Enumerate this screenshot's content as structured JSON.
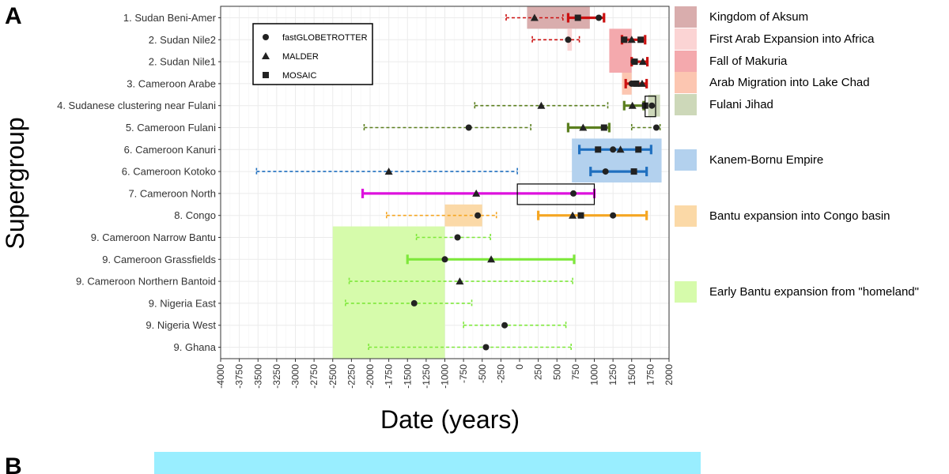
{
  "panel_labels": {
    "a": "A",
    "b": "B"
  },
  "chart_data": {
    "type": "interval-dot",
    "xlabel": "Date (years)",
    "ylabel": "Supergroup",
    "xlim": [
      -4000,
      2000
    ],
    "xticks": [
      -4000,
      -3750,
      -3500,
      -3250,
      -3000,
      -2750,
      -2500,
      -2250,
      -2000,
      -1750,
      -1500,
      -1250,
      -1000,
      -750,
      -500,
      -250,
      0,
      250,
      500,
      750,
      1000,
      1250,
      1500,
      1750,
      2000
    ],
    "grid": true,
    "categories": [
      "1. Sudan Beni-Amer",
      "2. Sudan Nile2",
      "2. Sudan Nile1",
      "3. Cameroon Arabe",
      "4. Sudanese clustering near Fulani",
      "5. Cameroon Fulani",
      "6. Cameroon Kanuri",
      "6. Cameroon Kotoko",
      "7. Cameroon North",
      "8. Congo",
      "9. Cameroon Narrow Bantu",
      "9. Cameroon Grassfields",
      "9. Cameroon Northern Bantoid",
      "9. Nigeria East",
      "9. Nigeria West",
      "9. Ghana"
    ],
    "method_legend": [
      {
        "method": "fastGLOBETROTTER",
        "shape": "circle"
      },
      {
        "method": "MALDER",
        "shape": "triangle"
      },
      {
        "method": "MOSAIC",
        "shape": "square"
      }
    ],
    "intervals": [
      {
        "group": 0,
        "from": -180,
        "to": 580,
        "style": "dashed",
        "color": "#cc1111"
      },
      {
        "group": 0,
        "from": 650,
        "to": 1130,
        "style": "solid",
        "color": "#cc1111"
      },
      {
        "group": 1,
        "from": 170,
        "to": 800,
        "style": "dashed",
        "color": "#cc1111"
      },
      {
        "group": 1,
        "from": 1370,
        "to": 1680,
        "style": "solid",
        "color": "#cc1111"
      },
      {
        "group": 2,
        "from": 1500,
        "to": 1710,
        "style": "solid",
        "color": "#cc1111"
      },
      {
        "group": 3,
        "from": 1420,
        "to": 1700,
        "style": "solid",
        "color": "#cc1111"
      },
      {
        "group": 4,
        "from": -600,
        "to": 1180,
        "style": "dashed",
        "color": "#5b7f1f"
      },
      {
        "group": 4,
        "from": 1400,
        "to": 1660,
        "style": "solid",
        "color": "#5b7f1f"
      },
      {
        "group": 5,
        "from": -2080,
        "to": 150,
        "style": "dashed",
        "color": "#5b7f1f"
      },
      {
        "group": 5,
        "from": 650,
        "to": 1200,
        "style": "solid",
        "color": "#5b7f1f"
      },
      {
        "group": 5,
        "from": 1500,
        "to": 1880,
        "style": "dashed",
        "color": "#5b7f1f"
      },
      {
        "group": 6,
        "from": 800,
        "to": 1760,
        "style": "solid",
        "color": "#1f6fbf"
      },
      {
        "group": 7,
        "from": -3520,
        "to": -30,
        "style": "dashed",
        "color": "#1f6fbf"
      },
      {
        "group": 7,
        "from": 950,
        "to": 1700,
        "style": "solid",
        "color": "#1f6fbf"
      },
      {
        "group": 8,
        "from": -2100,
        "to": 1000,
        "style": "solid",
        "color": "#dd11dd"
      },
      {
        "group": 9,
        "from": -1780,
        "to": -310,
        "style": "dashed",
        "color": "#f5a623"
      },
      {
        "group": 9,
        "from": 250,
        "to": 1700,
        "style": "solid",
        "color": "#f5a623"
      },
      {
        "group": 10,
        "from": -1380,
        "to": -390,
        "style": "dashed",
        "color": "#7ee83b"
      },
      {
        "group": 11,
        "from": -1500,
        "to": 730,
        "style": "solid",
        "color": "#7ee83b"
      },
      {
        "group": 12,
        "from": -2280,
        "to": 710,
        "style": "dashed",
        "color": "#7ee83b"
      },
      {
        "group": 13,
        "from": -2330,
        "to": -640,
        "style": "dashed",
        "color": "#7ee83b"
      },
      {
        "group": 14,
        "from": -750,
        "to": 620,
        "style": "dashed",
        "color": "#7ee83b"
      },
      {
        "group": 15,
        "from": -2020,
        "to": 690,
        "style": "dashed",
        "color": "#7ee83b"
      }
    ],
    "points": [
      {
        "group": 0,
        "x": 200,
        "shape": "triangle"
      },
      {
        "group": 0,
        "x": 780,
        "shape": "square"
      },
      {
        "group": 0,
        "x": 1060,
        "shape": "circle"
      },
      {
        "group": 1,
        "x": 650,
        "shape": "circle"
      },
      {
        "group": 1,
        "x": 1400,
        "shape": "square"
      },
      {
        "group": 1,
        "x": 1500,
        "shape": "triangle"
      },
      {
        "group": 1,
        "x": 1620,
        "shape": "square"
      },
      {
        "group": 2,
        "x": 1530,
        "shape": "circle"
      },
      {
        "group": 2,
        "x": 1540,
        "shape": "square"
      },
      {
        "group": 2,
        "x": 1650,
        "shape": "triangle"
      },
      {
        "group": 3,
        "x": 1500,
        "shape": "circle"
      },
      {
        "group": 3,
        "x": 1560,
        "shape": "square"
      },
      {
        "group": 3,
        "x": 1640,
        "shape": "triangle"
      },
      {
        "group": 4,
        "x": 290,
        "shape": "triangle"
      },
      {
        "group": 4,
        "x": 1510,
        "shape": "triangle"
      },
      {
        "group": 4,
        "x": 1680,
        "shape": "square"
      },
      {
        "group": 4,
        "x": 1770,
        "shape": "circle"
      },
      {
        "group": 5,
        "x": -680,
        "shape": "circle"
      },
      {
        "group": 5,
        "x": 850,
        "shape": "triangle"
      },
      {
        "group": 5,
        "x": 1130,
        "shape": "square"
      },
      {
        "group": 5,
        "x": 1830,
        "shape": "circle"
      },
      {
        "group": 6,
        "x": 1050,
        "shape": "square"
      },
      {
        "group": 6,
        "x": 1250,
        "shape": "circle"
      },
      {
        "group": 6,
        "x": 1350,
        "shape": "triangle"
      },
      {
        "group": 6,
        "x": 1590,
        "shape": "square"
      },
      {
        "group": 7,
        "x": -1750,
        "shape": "triangle"
      },
      {
        "group": 7,
        "x": 1150,
        "shape": "circle"
      },
      {
        "group": 7,
        "x": 1530,
        "shape": "square"
      },
      {
        "group": 8,
        "x": -580,
        "shape": "triangle"
      },
      {
        "group": 8,
        "x": 720,
        "shape": "circle"
      },
      {
        "group": 9,
        "x": -560,
        "shape": "circle"
      },
      {
        "group": 9,
        "x": 710,
        "shape": "triangle"
      },
      {
        "group": 9,
        "x": 820,
        "shape": "square"
      },
      {
        "group": 9,
        "x": 1250,
        "shape": "circle"
      },
      {
        "group": 10,
        "x": -830,
        "shape": "circle"
      },
      {
        "group": 11,
        "x": -1000,
        "shape": "circle"
      },
      {
        "group": 11,
        "x": -380,
        "shape": "triangle"
      },
      {
        "group": 12,
        "x": -800,
        "shape": "triangle"
      },
      {
        "group": 13,
        "x": -1410,
        "shape": "circle"
      },
      {
        "group": 14,
        "x": -200,
        "shape": "circle"
      },
      {
        "group": 15,
        "x": -450,
        "shape": "circle"
      }
    ],
    "historical_periods": [
      {
        "label": "Kingdom of Aksum",
        "color": "#d9adad",
        "from": 100,
        "to": 940,
        "groups": [
          0,
          0
        ]
      },
      {
        "label": "First Arab Expansion into Africa",
        "color": "#fbd4d4",
        "from": 640,
        "to": 700,
        "groups": [
          1,
          1
        ]
      },
      {
        "label": "Fall of Makuria",
        "color": "#f4a9ad",
        "from": 1200,
        "to": 1500,
        "groups": [
          1,
          2
        ]
      },
      {
        "label": "Arab Migration into Lake Chad",
        "color": "#fcc6b1",
        "from": 1370,
        "to": 1500,
        "groups": [
          3,
          3
        ]
      },
      {
        "label": "Fulani Jihad",
        "color": "#cdd8b9",
        "from": 1720,
        "to": 1880,
        "groups": [
          4,
          4
        ]
      },
      {
        "label": "Kanem-Bornu Empire",
        "color": "#b3d1ee",
        "from": 700,
        "to": 1900,
        "groups": [
          6,
          7
        ]
      },
      {
        "label": "Bantu expansion into Congo basin",
        "color": "#fbd9a7",
        "from": -1000,
        "to": -500,
        "groups": [
          9,
          9
        ]
      },
      {
        "label": "Early Bantu expansion from \"homeland\"",
        "color": "#d6fbab",
        "from": -2500,
        "to": -1000,
        "groups": [
          10,
          15
        ]
      }
    ],
    "highlight_boxes": [
      {
        "from": 1680,
        "to": 1820,
        "groups": [
          4,
          4
        ]
      },
      {
        "from": -30,
        "to": 1000,
        "groups": [
          8,
          8
        ]
      }
    ]
  }
}
